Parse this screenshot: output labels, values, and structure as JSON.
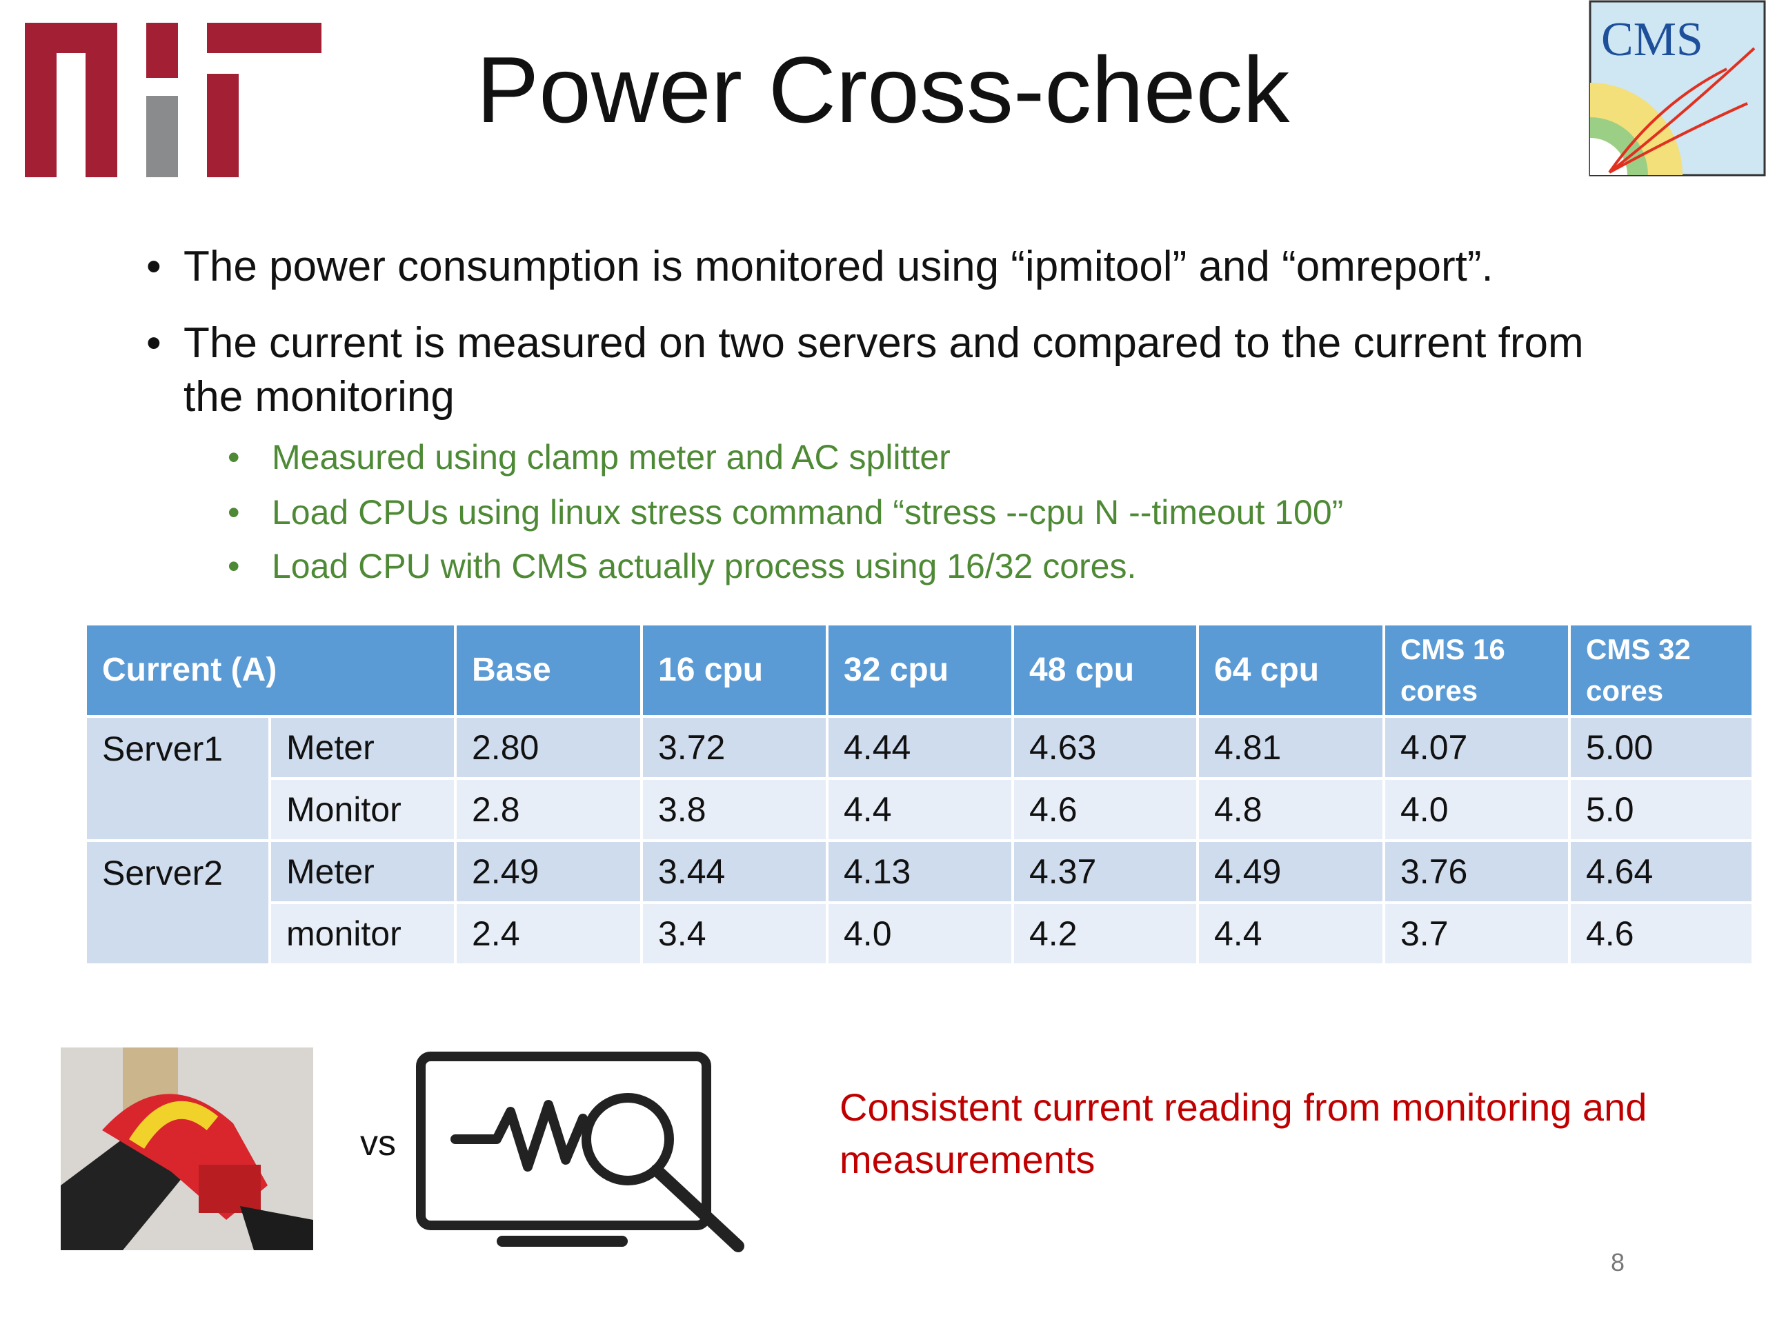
{
  "header": {
    "title": "Power Cross-check",
    "logo_text": "CMS"
  },
  "bullets": [
    {
      "text": "The power consumption is monitored using “ipmitool” and “omreport”."
    },
    {
      "text": "The current is measured on two servers and compared to the current from the monitoring",
      "sub": [
        "Measured using clamp meter and AC splitter",
        "Load CPUs using linux stress command “stress --cpu N --timeout 100”",
        "Load CPU with CMS actually process using 16/32 cores."
      ]
    }
  ],
  "table": {
    "header": [
      "Current (A)",
      "Base",
      "16 cpu",
      "32 cpu",
      "48 cpu",
      "64 cpu",
      "CMS 16 cores",
      "CMS 32 cores"
    ],
    "groups": [
      {
        "label": "Server1",
        "rows": [
          [
            "Meter",
            "2.80",
            "3.72",
            "4.44",
            "4.63",
            "4.81",
            "4.07",
            "5.00"
          ],
          [
            "Monitor",
            "2.8",
            "3.8",
            "4.4",
            "4.6",
            "4.8",
            "4.0",
            "5.0"
          ]
        ]
      },
      {
        "label": "Server2",
        "rows": [
          [
            "Meter",
            "2.49",
            "3.44",
            "4.13",
            "4.37",
            "4.49",
            "3.76",
            "4.64"
          ],
          [
            "monitor",
            "2.4",
            "3.4",
            "4.0",
            "4.2",
            "4.4",
            "3.7",
            "4.6"
          ]
        ]
      }
    ]
  },
  "vs_label": "vs",
  "conclusion": "Consistent current reading from monitoring and measurements",
  "page_number": "8"
}
